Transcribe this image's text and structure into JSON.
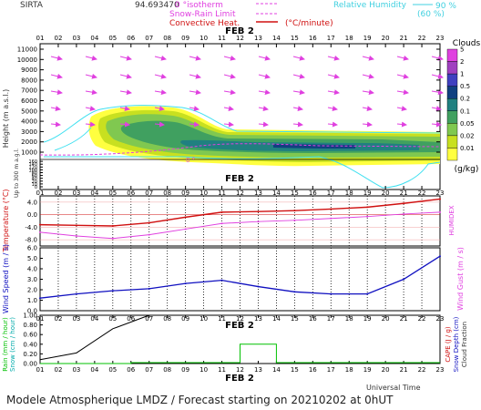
{
  "header": {
    "site": "SIRTA",
    "coord": "94.693470",
    "legend_isotherm": "0 °isotherm",
    "legend_snow_rain": "Snow-Rain Limit",
    "legend_convective": "Convective Heat.",
    "legend_convective_unit": "(°C/minute)",
    "legend_rh": "Relative Humidity",
    "legend_rh_90": "90 %",
    "legend_rh_60": "(60 %)"
  },
  "footer": {
    "title": "Modele Atmospherique LMDZ / Forecast starting on 20210202 at 0hUT",
    "universal_time": "Universal Time"
  },
  "colors": {
    "temperature": "#d01010",
    "humidex": "#e040e0",
    "wind": "#1010c0",
    "rain": "#00c000",
    "snow": "#00aaaa",
    "cape": "#d01010",
    "clouds_cmap": [
      "#ffff40",
      "#c8e020",
      "#80c850",
      "#40a060",
      "#208080",
      "#104080",
      "#4040c0",
      "#a040c0",
      "#e040e0"
    ],
    "rh": "#40e0f0",
    "arrows": "#e040e0"
  },
  "chart_data": [
    {
      "type": "heatmap",
      "name": "clouds",
      "ylabel": "Height (m a.s.l.)",
      "ylabel2": "Up to 300 m a.g.l.",
      "date_label": "FEB 2",
      "x_ticks": [
        "01",
        "02",
        "03",
        "04",
        "05",
        "06",
        "07",
        "08",
        "09",
        "10",
        "11",
        "12",
        "13",
        "14",
        "15",
        "16",
        "17",
        "18",
        "19",
        "20",
        "21",
        "22",
        "23"
      ],
      "y_ticks_upper": [
        1000,
        2000,
        3000,
        4000,
        5000,
        6000,
        7000,
        8000,
        9000,
        10000,
        11000
      ],
      "y_ticks_lower": [
        0,
        10,
        20,
        40,
        60,
        80,
        100,
        120,
        140,
        160
      ],
      "colorbar_title": "Clouds",
      "colorbar_unit": "(g/kg)",
      "colorbar_ticks": [
        "0.01",
        "0.02",
        "0.05",
        "0.1",
        "0.2",
        "0.5",
        "1",
        "2",
        "5"
      ],
      "isotherm_level": "0 °"
    },
    {
      "type": "line",
      "name": "temperature",
      "ylabel": "Temperature (°C)",
      "ylabel2": "HUMIDEX",
      "x": [
        1,
        3,
        5,
        7,
        9,
        11,
        13,
        15,
        17,
        19,
        21,
        23
      ],
      "series": [
        {
          "name": "Temperature",
          "values": [
            -3.2,
            -3.4,
            -3.6,
            -2.6,
            -0.8,
            0.8,
            1.0,
            1.3,
            1.8,
            2.4,
            3.6,
            5.0
          ]
        },
        {
          "name": "Humidex",
          "values": [
            -5.6,
            -6.8,
            -7.6,
            -6.4,
            -4.6,
            -2.8,
            -2.2,
            -1.8,
            -1.2,
            -0.6,
            0.2,
            0.8
          ]
        }
      ],
      "y_ticks": [
        "-8.0",
        "-4.0",
        "0.0",
        "4.0"
      ],
      "ylim": [
        -10,
        6
      ]
    },
    {
      "type": "line",
      "name": "wind",
      "ylabel": "Wind Speed (m / s)",
      "ylabel2": "Wind Gust (m / s)",
      "x": [
        1,
        3,
        5,
        7,
        9,
        11,
        13,
        15,
        17,
        19,
        21,
        23
      ],
      "series": [
        {
          "name": "Wind Speed",
          "values": [
            1.2,
            1.6,
            1.9,
            2.1,
            2.6,
            2.9,
            2.3,
            1.8,
            1.6,
            1.6,
            3.0,
            5.2
          ]
        }
      ],
      "y_ticks": [
        "0.0",
        "1.0",
        "2.0",
        "3.0",
        "4.0",
        "5.0",
        "6.0"
      ],
      "ylim": [
        0,
        6
      ]
    },
    {
      "type": "line",
      "name": "precipitation",
      "ylabel": "Rain (mm / hour)",
      "ylabel2": "Snow (cm / hour)",
      "ylabel3": "CAPE (J / g)",
      "ylabel4": "Snow Depth (cm)",
      "ylabel5": "Cloud Fraction",
      "date_label": "FEB 2",
      "series": [
        {
          "name": "Cloud Fraction",
          "x": [
            1,
            3,
            5,
            7
          ],
          "values": [
            0.08,
            0.22,
            0.72,
            1.0
          ]
        },
        {
          "name": "Rain",
          "x": [
            1,
            6,
            6,
            12,
            12,
            14,
            14,
            23
          ],
          "values": [
            0,
            0,
            0.02,
            0.02,
            0.4,
            0.4,
            0.02,
            0.02
          ]
        }
      ],
      "y_ticks": [
        "0.00",
        "0.20",
        "0.40",
        "0.60",
        "0.80",
        "1.00"
      ],
      "ylim": [
        0,
        1.0
      ]
    }
  ]
}
